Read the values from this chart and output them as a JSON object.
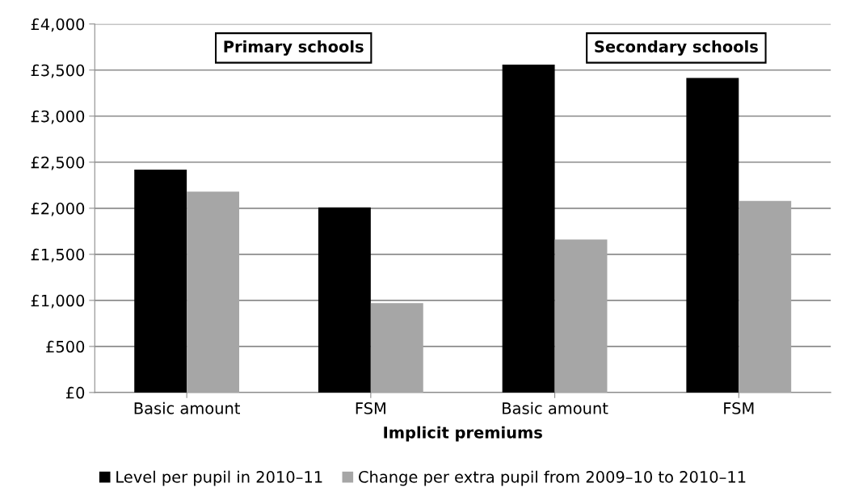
{
  "chart_data": {
    "type": "bar",
    "xlabel": "Implicit premiums",
    "categories": [
      "Basic amount",
      "FSM",
      "Basic amount",
      "FSM"
    ],
    "series": [
      {
        "name": "Level per pupil in 2010–11",
        "color": "#000000",
        "values": [
          2420,
          2010,
          3560,
          3415
        ]
      },
      {
        "name": "Change per extra pupil from 2009–10 to 2010–11",
        "color": "#a6a6a6",
        "values": [
          2180,
          970,
          1660,
          2080
        ]
      }
    ],
    "ylim": [
      0,
      4000
    ],
    "yticks": [
      {
        "value": 0,
        "label": "£0"
      },
      {
        "value": 500,
        "label": "£500"
      },
      {
        "value": 1000,
        "label": "£1,000"
      },
      {
        "value": 1500,
        "label": "£1,500"
      },
      {
        "value": 2000,
        "label": "£2,000"
      },
      {
        "value": 2500,
        "label": "£2,500"
      },
      {
        "value": 3000,
        "label": "£3,000"
      },
      {
        "value": 3500,
        "label": "£3,500"
      },
      {
        "value": 4000,
        "label": "£4,000"
      }
    ],
    "annotations": [
      "Primary schools",
      "Secondary schools"
    ],
    "grid": "y",
    "legend": "bottom"
  }
}
